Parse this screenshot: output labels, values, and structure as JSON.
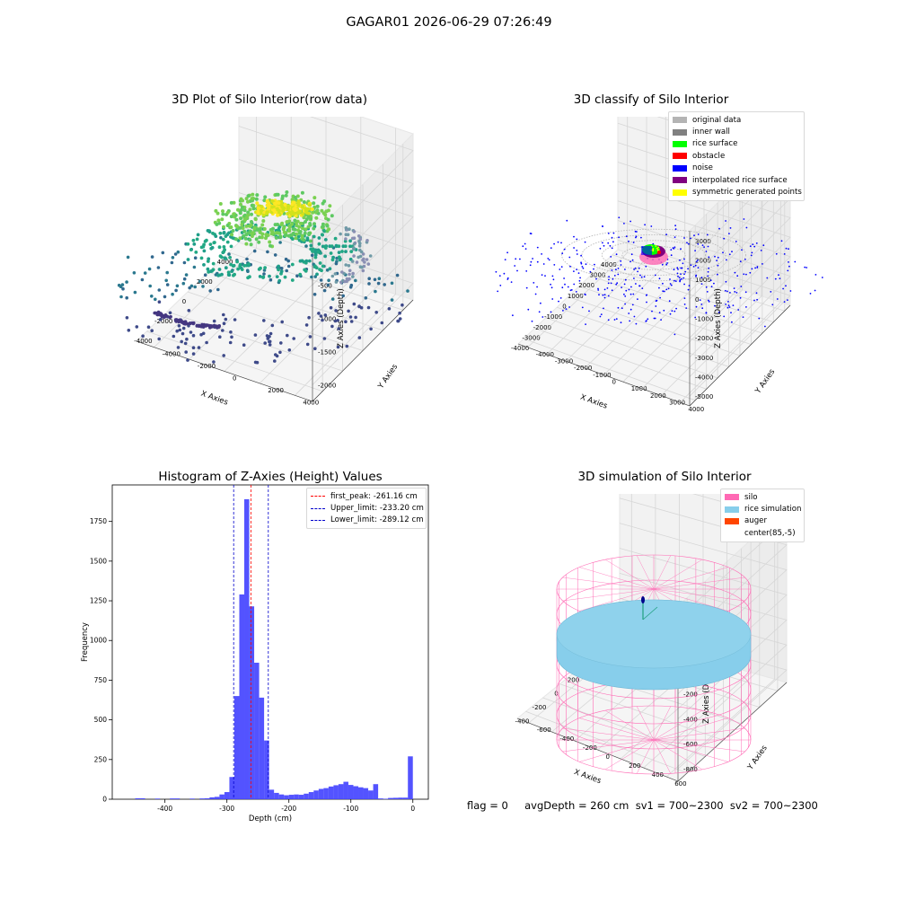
{
  "suptitle": "GAGAR01 2026-06-29 07:26:49",
  "panels": {
    "raw": {
      "title": "3D Plot of Silo Interior(row data)",
      "xlabel": "X Axies",
      "ylabel": "Y Axies",
      "zlabel": "Z Axies (Depth)",
      "xticks": [
        "-4000",
        "-2000",
        "0",
        "2000",
        "4000"
      ],
      "yticks": [
        "-4000",
        "-2000",
        "0",
        "2000",
        "4000"
      ],
      "zticks": [
        "0",
        "-500",
        "-1000",
        "-1500",
        "-2000"
      ]
    },
    "classify": {
      "title": "3D classify of Silo Interior",
      "xlabel": "X Axies",
      "ylabel": "Y Axies",
      "zlabel": "Z Axies (Depth)",
      "xticks": [
        "-4000",
        "-3000",
        "-2000",
        "-1000",
        "0",
        "1000",
        "2000",
        "3000",
        "4000"
      ],
      "yticks": [
        "-4000",
        "-3000",
        "-2000",
        "-1000",
        "0",
        "1000",
        "2000",
        "3000",
        "4000"
      ],
      "zticks": [
        "3000",
        "2000",
        "1000",
        "0",
        "-1000",
        "-2000",
        "-3000",
        "-4000",
        "-5000"
      ],
      "legend": [
        {
          "label": "original data",
          "color": "#b4b4b4"
        },
        {
          "label": "inner wall",
          "color": "#808080"
        },
        {
          "label": "rice surface",
          "color": "#00ff00"
        },
        {
          "label": "obstacle",
          "color": "#ff0000"
        },
        {
          "label": "noise",
          "color": "#0000ff"
        },
        {
          "label": "interpolated rice surface",
          "color": "#800080"
        },
        {
          "label": "symmetric generated points",
          "color": "#ffff00"
        }
      ]
    },
    "sim": {
      "title": "3D simulation of Silo Interior",
      "xlabel": "X Axies",
      "ylabel": "Y Axies",
      "zlabel": "Z Axies (Depth)",
      "xticks": [
        "-400",
        "-200",
        "0",
        "200",
        "400",
        "600"
      ],
      "yticks": [
        "-600",
        "-400",
        "-200",
        "0",
        "200",
        "400",
        "600"
      ],
      "zticks": [
        "400",
        "200",
        "0",
        "-200",
        "-400",
        "-600",
        "-800"
      ],
      "legend": [
        {
          "label": "silo",
          "color": "#ff69b4"
        },
        {
          "label": "rice simulation",
          "color": "#87ceeb"
        },
        {
          "label": "auger",
          "color": "#ff4500"
        },
        {
          "label": "center(85,-5)",
          "color": ""
        }
      ]
    }
  },
  "footer": "flag = 0     avgDepth = 260 cm  sv1 = 700~2300  sv2 = 700~2300",
  "chart_data": [
    {
      "type": "scatter",
      "title": "3D Plot of Silo Interior(row data)",
      "xlabel": "X Axies",
      "ylabel": "Y Axies",
      "zlabel": "Z Axies (Depth)",
      "xlim": [
        -4000,
        4000
      ],
      "ylim": [
        -4000,
        4000
      ],
      "zlim": [
        -2000,
        0
      ]
    },
    {
      "type": "scatter",
      "title": "3D classify of Silo Interior",
      "xlabel": "X Axies",
      "ylabel": "Y Axies",
      "zlabel": "Z Axies (Depth)",
      "xlim": [
        -4000,
        4000
      ],
      "ylim": [
        -4000,
        4000
      ],
      "zlim": [
        -5000,
        3000
      ],
      "series": [
        {
          "name": "original data"
        },
        {
          "name": "inner wall"
        },
        {
          "name": "rice surface"
        },
        {
          "name": "obstacle"
        },
        {
          "name": "noise"
        },
        {
          "name": "interpolated rice surface"
        },
        {
          "name": "symmetric generated points"
        }
      ],
      "legend_position": "top-right"
    },
    {
      "type": "bar",
      "title": "Histogram of Z-Axies (Height) Values",
      "xlabel": "Depth (cm)",
      "ylabel": "Frequency",
      "xlim": [
        -485,
        25
      ],
      "ylim": [
        0,
        1980
      ],
      "xticks": [
        -400,
        -300,
        -200,
        -100,
        0
      ],
      "yticks": [
        0,
        250,
        500,
        750,
        1000,
        1250,
        1500,
        1750
      ],
      "bin_width": 8,
      "bins": [
        {
          "x": -448,
          "value": 6
        },
        {
          "x": -440,
          "value": 6
        },
        {
          "x": -416,
          "value": 4
        },
        {
          "x": -392,
          "value": 5
        },
        {
          "x": -384,
          "value": 5
        },
        {
          "x": -360,
          "value": 4
        },
        {
          "x": -344,
          "value": 5
        },
        {
          "x": -336,
          "value": 6
        },
        {
          "x": -328,
          "value": 12
        },
        {
          "x": -320,
          "value": 15
        },
        {
          "x": -312,
          "value": 30
        },
        {
          "x": -304,
          "value": 45
        },
        {
          "x": -296,
          "value": 140
        },
        {
          "x": -288,
          "value": 650
        },
        {
          "x": -280,
          "value": 1290
        },
        {
          "x": -272,
          "value": 1890
        },
        {
          "x": -264,
          "value": 1215
        },
        {
          "x": -256,
          "value": 860
        },
        {
          "x": -248,
          "value": 640
        },
        {
          "x": -240,
          "value": 370
        },
        {
          "x": -232,
          "value": 60
        },
        {
          "x": -224,
          "value": 40
        },
        {
          "x": -216,
          "value": 30
        },
        {
          "x": -208,
          "value": 25
        },
        {
          "x": -200,
          "value": 28
        },
        {
          "x": -192,
          "value": 30
        },
        {
          "x": -184,
          "value": 28
        },
        {
          "x": -176,
          "value": 35
        },
        {
          "x": -168,
          "value": 45
        },
        {
          "x": -160,
          "value": 55
        },
        {
          "x": -152,
          "value": 65
        },
        {
          "x": -144,
          "value": 70
        },
        {
          "x": -136,
          "value": 80
        },
        {
          "x": -128,
          "value": 88
        },
        {
          "x": -120,
          "value": 95
        },
        {
          "x": -112,
          "value": 110
        },
        {
          "x": -104,
          "value": 90
        },
        {
          "x": -96,
          "value": 82
        },
        {
          "x": -88,
          "value": 75
        },
        {
          "x": -80,
          "value": 70
        },
        {
          "x": -72,
          "value": 55
        },
        {
          "x": -64,
          "value": 95
        },
        {
          "x": -56,
          "value": 5
        },
        {
          "x": -48,
          "value": 3
        },
        {
          "x": -40,
          "value": 8
        },
        {
          "x": -32,
          "value": 9
        },
        {
          "x": -24,
          "value": 10
        },
        {
          "x": -16,
          "value": 10
        },
        {
          "x": -8,
          "value": 270
        }
      ],
      "lines": [
        {
          "label": "first_peak: -261.16 cm",
          "x": -261.16,
          "color": "#ff0000"
        },
        {
          "label": "Upper_limit: -233.20 cm",
          "x": -233.2,
          "color": "#0000cc"
        },
        {
          "label": "Lower_limit: -289.12 cm",
          "x": -289.12,
          "color": "#0000cc"
        }
      ],
      "bar_color": "#4444ff",
      "legend_position": "top-right"
    },
    {
      "type": "other",
      "title": "3D simulation of Silo Interior",
      "xlabel": "X Axies",
      "ylabel": "Y Axies",
      "zlabel": "Z Axies (Depth)",
      "xlim": [
        -500,
        700
      ],
      "ylim": [
        -700,
        700
      ],
      "zlim": [
        -900,
        450
      ],
      "series": [
        {
          "name": "silo"
        },
        {
          "name": "rice simulation"
        },
        {
          "name": "auger"
        },
        {
          "name": "center(85,-5)"
        }
      ],
      "legend_position": "top-right"
    }
  ]
}
